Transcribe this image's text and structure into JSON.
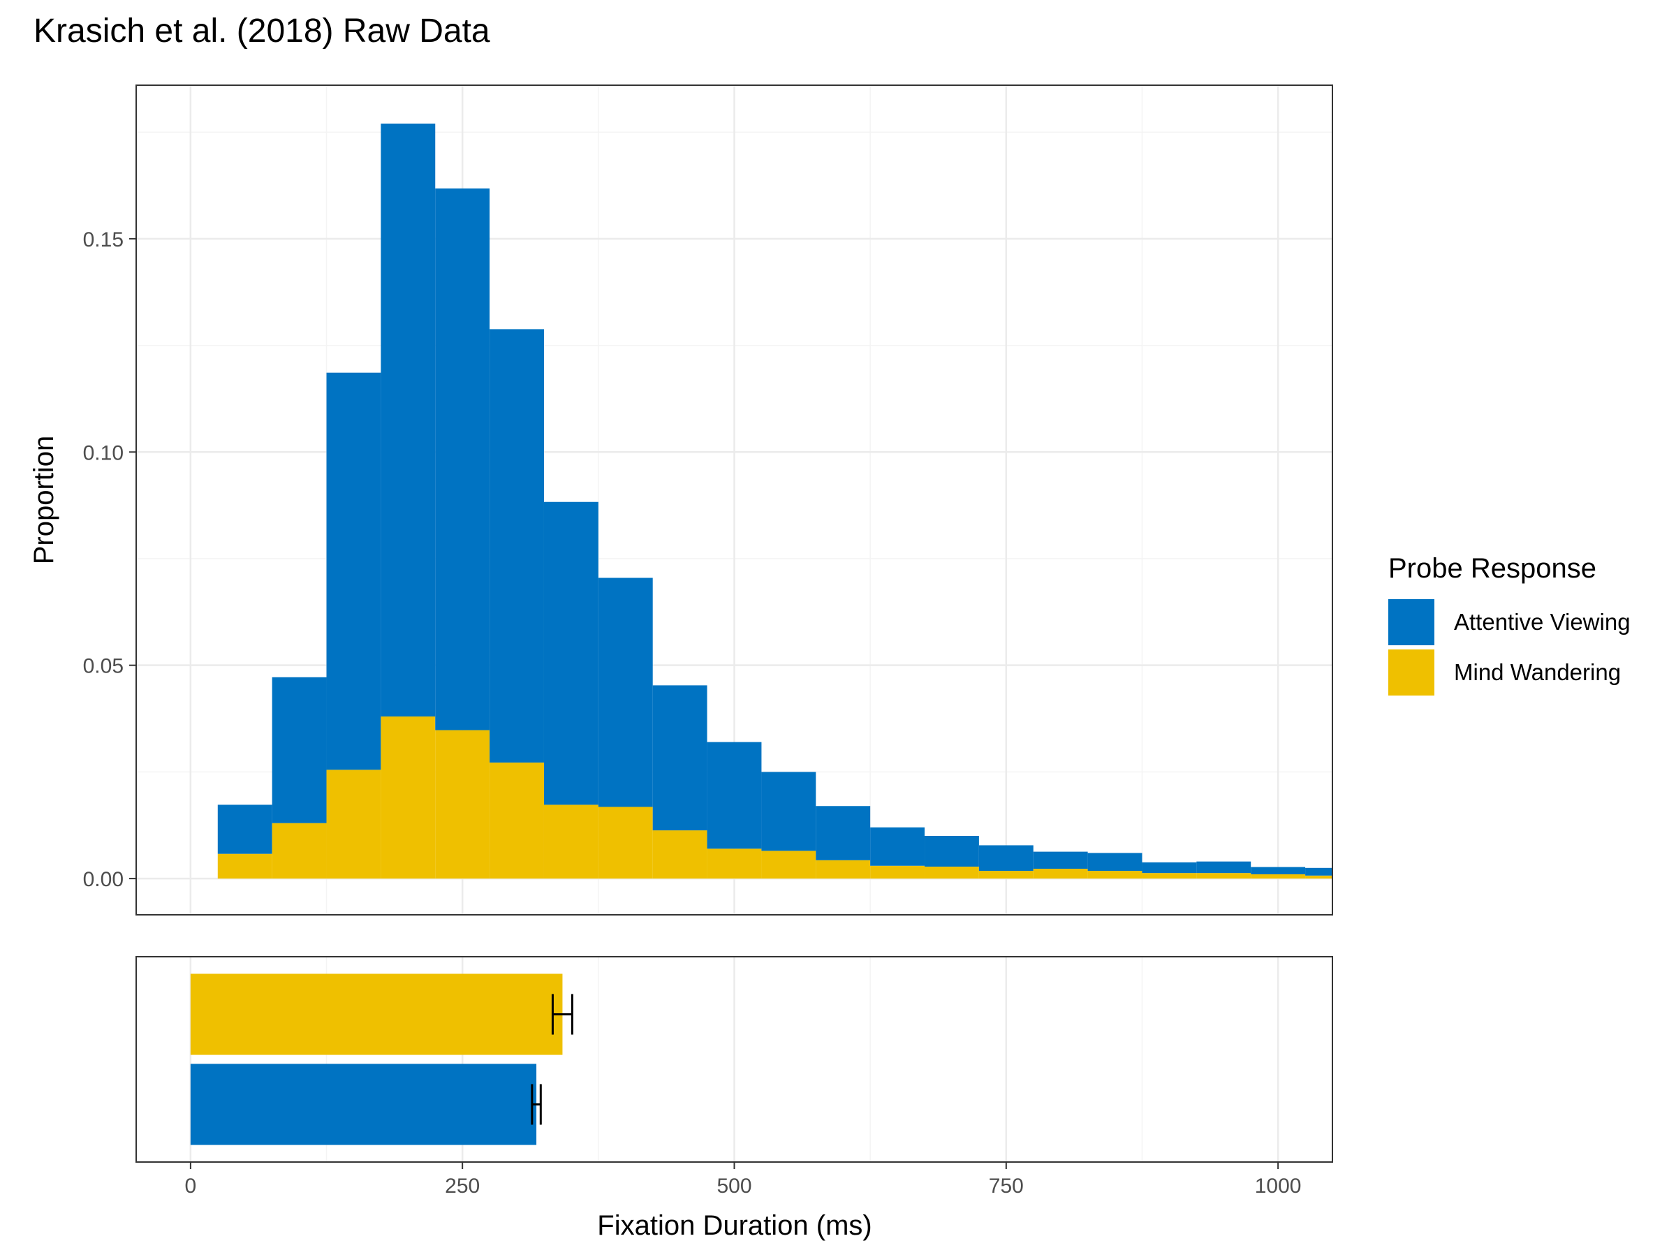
{
  "chart_data": {
    "type": "bar",
    "title": "Krasich et al. (2018) Raw Data",
    "xlabel": "Fixation Duration (ms)",
    "ylabel": "Proportion",
    "xlim": [
      -50,
      1050
    ],
    "ylim": [
      -0.0085,
      0.186
    ],
    "x_ticks": [
      0,
      250,
      500,
      750,
      1000
    ],
    "y_ticks": [
      0.0,
      0.05,
      0.1,
      0.15
    ],
    "y_tick_labels": [
      "0.00",
      "0.05",
      "0.10",
      "0.15"
    ],
    "grid": true,
    "stacked": true,
    "bin_width": 50,
    "bin_starts": [
      25,
      75,
      125,
      175,
      225,
      275,
      325,
      375,
      425,
      475,
      525,
      575,
      625,
      675,
      725,
      775,
      825,
      875,
      925,
      975,
      1025
    ],
    "legend": {
      "title": "Probe Response",
      "position": "right"
    },
    "series": [
      {
        "name": "Mind Wandering",
        "color": "#EFC000",
        "values": [
          0.0058,
          0.013,
          0.0255,
          0.038,
          0.0348,
          0.0272,
          0.0173,
          0.0168,
          0.0113,
          0.007,
          0.0065,
          0.0043,
          0.003,
          0.0028,
          0.0018,
          0.0023,
          0.0018,
          0.0013,
          0.0013,
          0.001,
          0.0007
        ]
      },
      {
        "name": "Attentive Viewing",
        "color": "#0073C2",
        "values": [
          0.0115,
          0.0342,
          0.0931,
          0.139,
          0.127,
          0.1016,
          0.071,
          0.0537,
          0.034,
          0.025,
          0.0185,
          0.0127,
          0.009,
          0.0072,
          0.006,
          0.004,
          0.0042,
          0.0025,
          0.0027,
          0.0017,
          0.0018
        ]
      }
    ],
    "mean_panel": {
      "type": "bar",
      "orientation": "horizontal",
      "bars": [
        {
          "name": "Mind Wandering",
          "color": "#EFC000",
          "value": 342,
          "error": 9
        },
        {
          "name": "Attentive Viewing",
          "color": "#0073C2",
          "value": 318,
          "error": 4
        }
      ]
    }
  }
}
